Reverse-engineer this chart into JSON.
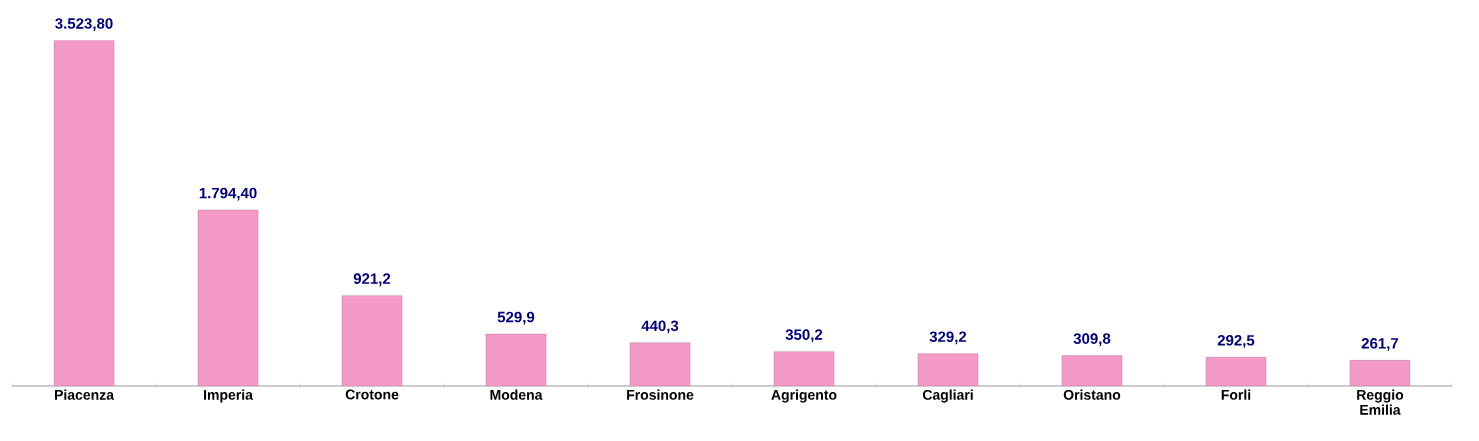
{
  "chart_data": {
    "type": "bar",
    "categories": [
      "Piacenza",
      "Imperia",
      "Crotone",
      "Modena",
      "Frosinone",
      "Agrigento",
      "Cagliari",
      "Oristano",
      "Forli",
      "Reggio Emilia"
    ],
    "values": [
      3523.8,
      1794.4,
      921.2,
      529.9,
      440.3,
      350.2,
      329.2,
      309.8,
      292.5,
      261.7
    ],
    "value_labels": [
      "3.523,80",
      "1.794,40",
      "921,2",
      "529,9",
      "440,3",
      "350,2",
      "329,2",
      "309,8",
      "292,5",
      "261,7"
    ],
    "color": "#f59ac8"
  }
}
